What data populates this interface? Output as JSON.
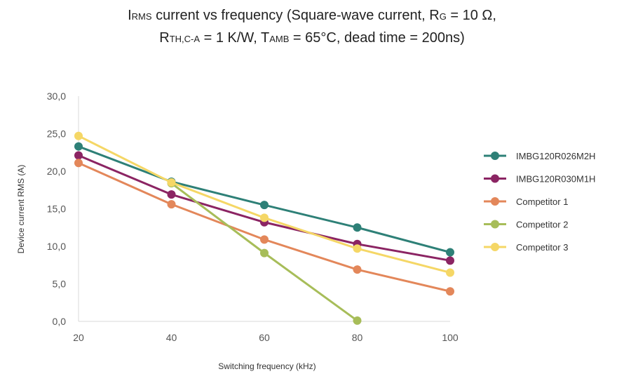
{
  "chart_data": {
    "type": "line",
    "title": {
      "line1": [
        {
          "text": "I",
          "sub": false
        },
        {
          "text": "RMS",
          "sub": true
        },
        {
          "text": " current vs frequency (Square-wave current, R",
          "sub": false
        },
        {
          "text": "G",
          "sub": true
        },
        {
          "text": " = 10 Ω,",
          "sub": false
        }
      ],
      "line2": [
        {
          "text": "R",
          "sub": false
        },
        {
          "text": "TH,C-A",
          "sub": true
        },
        {
          "text": " = 1 K/W, T",
          "sub": false
        },
        {
          "text": "AMB",
          "sub": true
        },
        {
          "text": " = 65°C, dead time = 200ns)",
          "sub": false
        }
      ]
    },
    "xlabel": "Switching frequency (kHz)",
    "ylabel": "Device current RMS (A)",
    "x": [
      20,
      40,
      60,
      80,
      100
    ],
    "xlim": [
      20,
      100
    ],
    "ylim": [
      0,
      30
    ],
    "x_ticks": [
      "20",
      "40",
      "60",
      "80",
      "100"
    ],
    "y_ticks": [
      "0,0",
      "5,0",
      "10,0",
      "15,0",
      "20,0",
      "25,0",
      "30,0"
    ],
    "grid": false,
    "legend_position": "right",
    "series": [
      {
        "name": "IMBG120R026M2H",
        "color": "#2e8077",
        "values": [
          23.3,
          18.6,
          15.5,
          12.5,
          9.2
        ]
      },
      {
        "name": "IMBG120R030M1H",
        "color": "#8b2463",
        "values": [
          22.1,
          16.9,
          13.2,
          10.3,
          8.1
        ]
      },
      {
        "name": "Competitor 1",
        "color": "#e3875a",
        "values": [
          21.1,
          15.6,
          10.9,
          6.9,
          4.0
        ]
      },
      {
        "name": "Competitor 2",
        "color": "#a7bd59",
        "values": [
          null,
          18.4,
          9.1,
          0.1,
          null
        ]
      },
      {
        "name": "Competitor 3",
        "color": "#f5d766",
        "values": [
          24.7,
          18.5,
          13.8,
          9.7,
          6.5
        ]
      }
    ]
  }
}
